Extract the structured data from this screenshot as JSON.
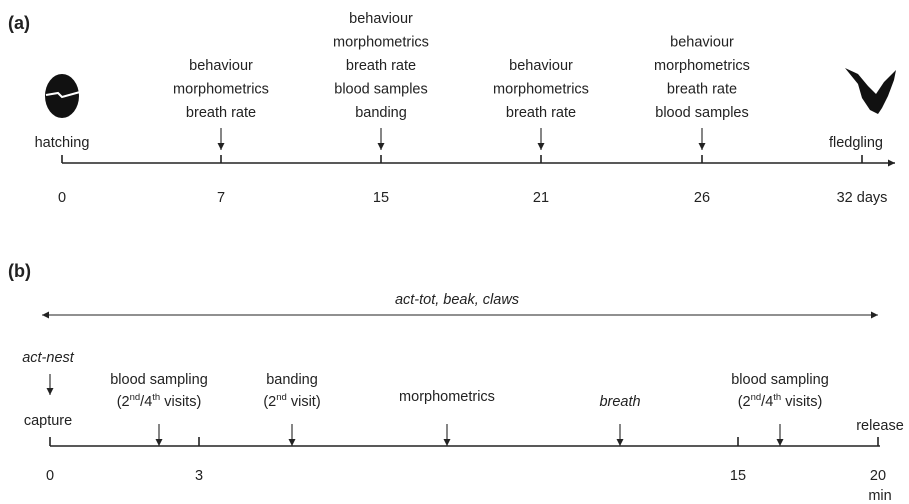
{
  "panel_a": {
    "label": "(a)",
    "start": "hatching",
    "end": "fledgling",
    "ticks": [
      "0",
      "7",
      "15",
      "21",
      "26",
      "32 days"
    ],
    "events": [
      [
        "behaviour",
        "morphometrics",
        "breath rate"
      ],
      [
        "behaviour",
        "morphometrics",
        "breath rate",
        "blood samples",
        "banding"
      ],
      [
        "behaviour",
        "morphometrics",
        "breath rate"
      ],
      [
        "behaviour",
        "morphometrics",
        "breath rate",
        "blood samples"
      ]
    ]
  },
  "panel_b": {
    "label": "(b)",
    "span": "act-tot, beak, claws",
    "start_note": "act-nest",
    "start": "capture",
    "end": "release",
    "ticks": [
      "0",
      "3",
      "15",
      "20"
    ],
    "unit": "min",
    "blood_sampling_1": {
      "title": "blood sampling",
      "note": [
        "(2",
        "nd",
        "/4",
        "th",
        " visits)"
      ]
    },
    "banding": {
      "title": "banding",
      "note": [
        "(2",
        "nd",
        " visit)"
      ]
    },
    "morphometrics": "morphometrics",
    "breath": "breath",
    "blood_sampling_2": {
      "title": "blood sampling",
      "note": [
        "(2",
        "nd",
        "/4",
        "th",
        " visits)"
      ]
    }
  }
}
